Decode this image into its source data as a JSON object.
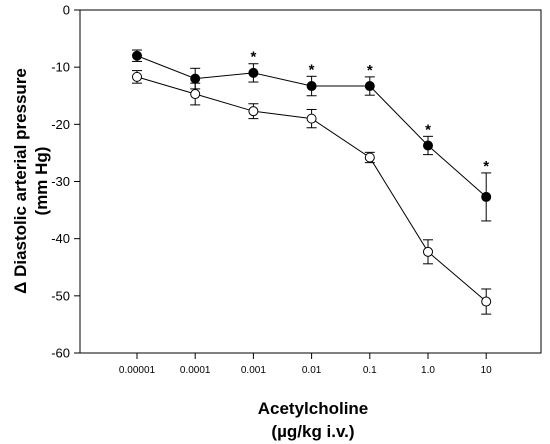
{
  "chart_data": {
    "type": "line",
    "x": [
      "0.00001",
      "0.0001",
      "0.001",
      "0.01",
      "0.1",
      "1.0",
      "10"
    ],
    "xlabel": [
      "Acetylcholine",
      "(µg/kg i.v.)"
    ],
    "ylabel": [
      "Δ Diastolic arterial pressure",
      "(mm Hg)"
    ],
    "ylim": [
      -60,
      0
    ],
    "yticks": [
      0,
      -10,
      -20,
      -30,
      -40,
      -50,
      -60
    ],
    "ytick_labels": [
      "0",
      "-10",
      "-20",
      "-30",
      "-40",
      "-50",
      "-60"
    ],
    "grid": false,
    "series": [
      {
        "marker": "filled-circle",
        "color": "#000000",
        "values": [
          -8,
          -12,
          -11,
          -13.3,
          -13.3,
          -23.7,
          -32.7
        ],
        "errors": [
          1.0,
          1.8,
          1.6,
          1.7,
          1.6,
          1.6,
          4.2
        ],
        "significant": [
          false,
          false,
          true,
          true,
          true,
          true,
          true
        ],
        "annotation": "*"
      },
      {
        "marker": "open-circle",
        "color": "#000000",
        "values": [
          -11.7,
          -14.7,
          -17.7,
          -19,
          -25.8,
          -42.3,
          -51
        ],
        "errors": [
          1.1,
          1.9,
          1.3,
          1.6,
          0.9,
          2.1,
          2.2
        ]
      }
    ]
  }
}
